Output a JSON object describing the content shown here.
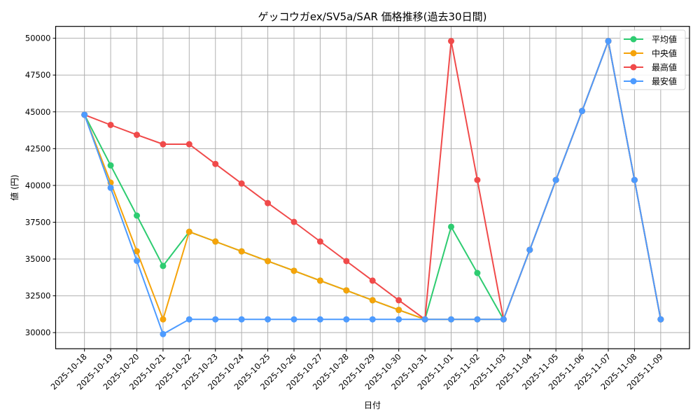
{
  "chart_data": {
    "type": "line",
    "title": "ゲッコウガex/SV5a/SAR 価格推移(過去30日間)",
    "xlabel": "日付",
    "ylabel": "値 (円)",
    "categories": [
      "2025-10-18",
      "2025-10-19",
      "2025-10-20",
      "2025-10-21",
      "2025-10-22",
      "2025-10-23",
      "2025-10-24",
      "2025-10-25",
      "2025-10-26",
      "2025-10-27",
      "2025-10-28",
      "2025-10-29",
      "2025-10-30",
      "2025-10-31",
      "2025-11-01",
      "2025-11-02",
      "2025-11-03",
      "2025-11-04",
      "2025-11-05",
      "2025-11-06",
      "2025-11-07",
      "2025-11-08",
      "2025-11-09"
    ],
    "series": [
      {
        "name": "平均値",
        "color": "#2ecc71",
        "values": [
          44800,
          41360,
          37950,
          34530,
          36850,
          36190,
          35520,
          34860,
          34200,
          33530,
          32870,
          32200,
          31540,
          30900,
          37190,
          34050,
          30900,
          35620,
          40370,
          45060,
          49810,
          40370,
          30900
        ]
      },
      {
        "name": "中央値",
        "color": "#f5a30a",
        "values": [
          44800,
          40190,
          35530,
          30900,
          36850,
          36190,
          35520,
          34860,
          34200,
          33530,
          32870,
          32200,
          31540,
          30900,
          30900,
          30900,
          30900,
          35620,
          40370,
          45060,
          49810,
          40370,
          30900
        ]
      },
      {
        "name": "最高値",
        "color": "#f04a4a",
        "values": [
          44800,
          44110,
          43440,
          42800,
          42800,
          41460,
          40130,
          38800,
          37520,
          36190,
          34860,
          33530,
          32200,
          30900,
          49810,
          40370,
          30900,
          35620,
          40370,
          45060,
          49810,
          40370,
          30900
        ]
      },
      {
        "name": "最安値",
        "color": "#4d9bff",
        "values": [
          44800,
          39840,
          34880,
          29900,
          30900,
          30900,
          30900,
          30900,
          30900,
          30900,
          30900,
          30900,
          30900,
          30900,
          30900,
          30900,
          30900,
          35620,
          40370,
          45060,
          49810,
          40370,
          30900
        ]
      }
    ],
    "yticks": [
      30000,
      32500,
      35000,
      37500,
      40000,
      42500,
      45000,
      47500,
      50000
    ],
    "ylim": [
      28904,
      50806
    ],
    "xlim": [
      -1.1,
      23.1
    ],
    "grid": true,
    "legend_position": "upper right"
  }
}
